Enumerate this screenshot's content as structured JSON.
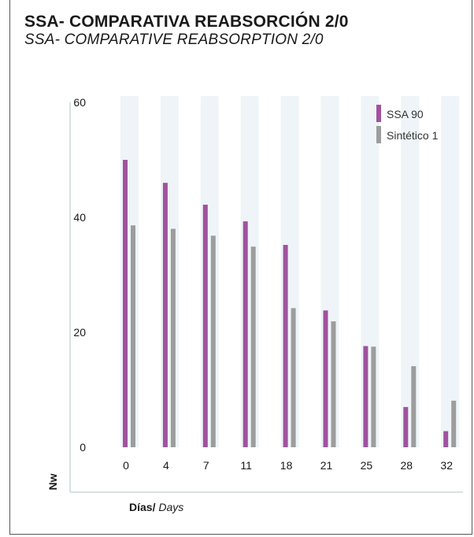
{
  "title": "SSA- COMPARATIVA REABSORCIÓN 2/0",
  "subtitle": "SSA- COMPARATIVE REABSORPTION 2/0",
  "chart_data": {
    "type": "bar",
    "categories": [
      "0",
      "4",
      "7",
      "11",
      "18",
      "21",
      "25",
      "28",
      "32"
    ],
    "series": [
      {
        "name": "SSA 90",
        "color": "#a0529e",
        "values": [
          50,
          46,
          42.2,
          39.3,
          35.2,
          23.8,
          17.6,
          7,
          2.8
        ]
      },
      {
        "name": "Sintético 1",
        "color": "#9d9d9d",
        "values": [
          38.6,
          38,
          36.8,
          34.9,
          24.2,
          21.9,
          17.5,
          14.1,
          8.1
        ]
      }
    ],
    "yticks": [
      0,
      20,
      40,
      60
    ],
    "ylim": [
      0,
      60
    ],
    "ylabel": "Nw",
    "xlabel_bold": "Días/",
    "xlabel_italic": "Days",
    "legend_position": "top-right",
    "grid": false
  }
}
